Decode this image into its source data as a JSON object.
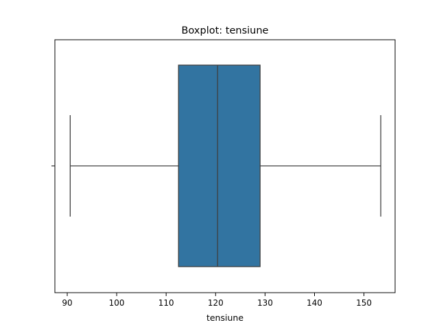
{
  "chart_data": {
    "type": "boxplot",
    "title": "Boxplot: tensiune",
    "xlabel": "tensiune",
    "ylabel": "",
    "xlim": [
      87.5,
      156.3
    ],
    "xticks": [
      90,
      100,
      110,
      120,
      130,
      140,
      150
    ],
    "grid": false,
    "legend": "none",
    "box": {
      "whisker_low": 90.6,
      "q1": 112.5,
      "median": 120.4,
      "q3": 129.0,
      "whisker_high": 153.4
    },
    "colors": {
      "box_fill": "#3274a1",
      "lines": "#3f3f3f",
      "axes": "#000000"
    }
  }
}
